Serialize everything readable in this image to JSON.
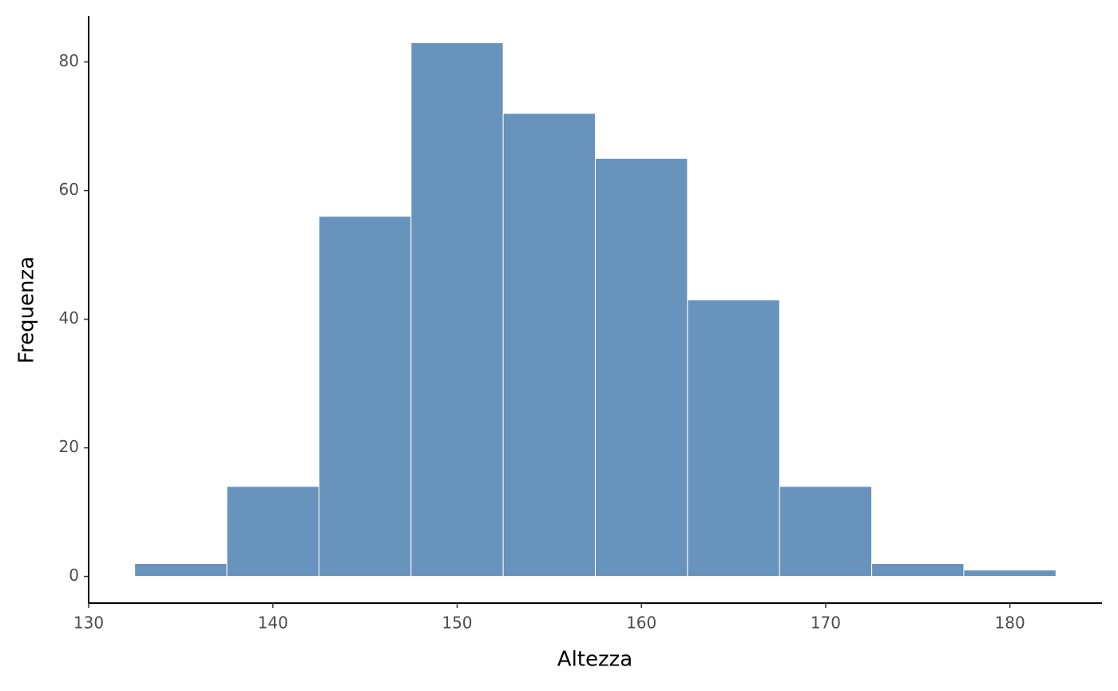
{
  "chart_data": {
    "type": "histogram",
    "x_label": "Altezza",
    "y_label": "Frequenza",
    "bins": [
      132.5,
      137.5,
      142.5,
      147.5,
      152.5,
      157.5,
      162.5,
      167.5,
      172.5,
      177.5,
      182.5
    ],
    "counts": [
      2,
      14,
      56,
      83,
      72,
      65,
      43,
      14,
      2,
      1
    ],
    "color": "#6893bc",
    "xlim": [
      130,
      185
    ],
    "xticks": [
      130,
      140,
      150,
      160,
      170,
      180
    ],
    "ylim": [
      -4.15,
      87.15
    ],
    "yticks": [
      0,
      20,
      40,
      60,
      80
    ],
    "grid": false
  }
}
